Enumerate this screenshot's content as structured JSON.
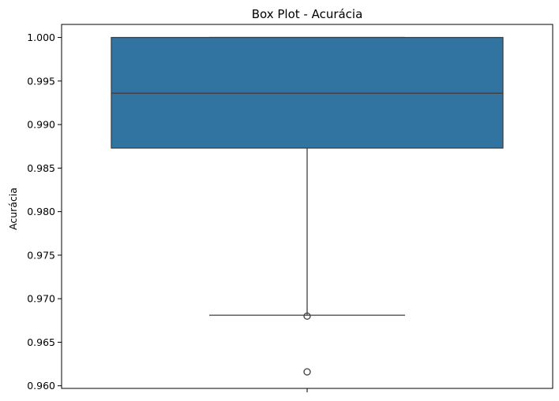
{
  "chart_data": {
    "type": "box",
    "title": "Box Plot - Acurácia",
    "xlabel": "",
    "ylabel": "Acurácia",
    "ylim": [
      0.9597,
      1.0015
    ],
    "yticks": [
      0.96,
      0.965,
      0.97,
      0.975,
      0.98,
      0.985,
      0.99,
      0.995,
      1.0
    ],
    "ytick_labels": [
      "0.960",
      "0.965",
      "0.970",
      "0.975",
      "0.980",
      "0.985",
      "0.990",
      "0.995",
      "1.000"
    ],
    "box": {
      "q1": 0.9873,
      "median": 0.9936,
      "q3": 1.0,
      "whisker_low": 0.9681,
      "whisker_high": 1.0
    },
    "outliers": [
      0.968,
      0.9616
    ],
    "colors": {
      "box_fill": "#3274a1",
      "line": "#3f3f3f",
      "axes": "#000000",
      "background": "#ffffff"
    },
    "grid": false,
    "legend": "none"
  }
}
